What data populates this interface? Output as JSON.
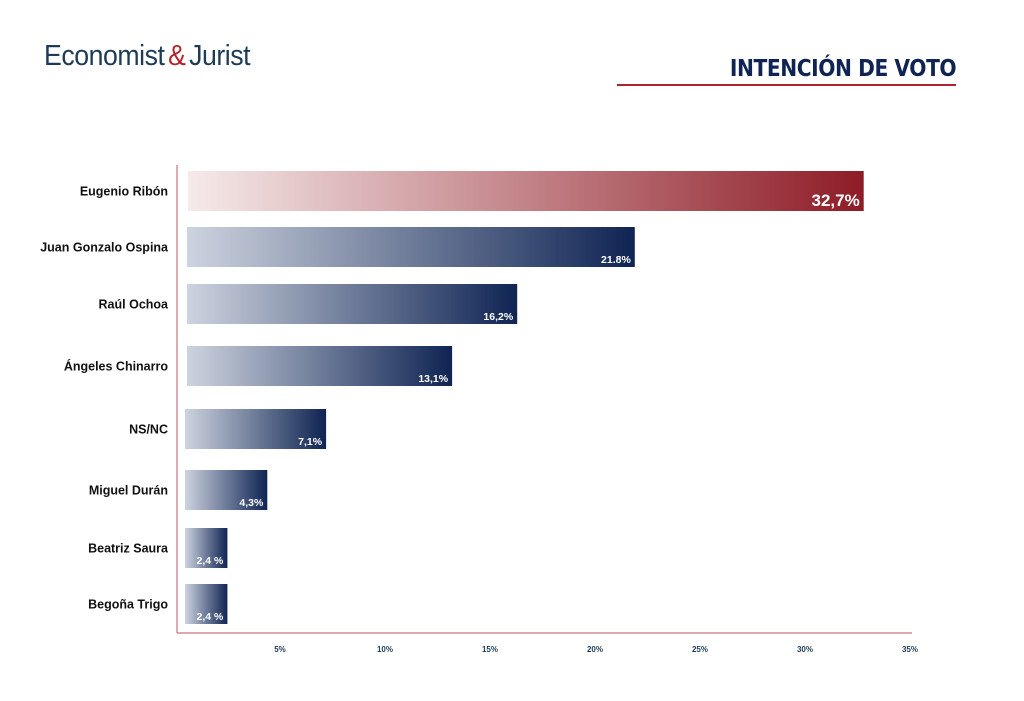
{
  "header": {
    "logo_part1": "Economist",
    "logo_amp": "&",
    "logo_part2": "Jurist",
    "title": "INTENCIÓN DE VOTO"
  },
  "chart_data": {
    "type": "bar",
    "orientation": "horizontal",
    "title": "INTENCIÓN DE VOTO",
    "xlabel": "",
    "ylabel": "",
    "xlim": [
      0,
      35
    ],
    "grid": false,
    "categories": [
      "Eugenio Ribón",
      "Juan Gonzalo Ospina",
      "Raúl Ochoa",
      "Ángeles Chinarro",
      "NS/NC",
      "Miguel Durán",
      "Beatriz Saura",
      "Begoña Trigo"
    ],
    "values": [
      32.7,
      21.8,
      16.2,
      13.1,
      7.1,
      4.3,
      2.4,
      2.4
    ],
    "value_labels": [
      "32,7%",
      "21.8%",
      "16,2%",
      "13,1%",
      "7,1%",
      "4,3%",
      "2,4 %",
      "2,4 %"
    ],
    "ticks": [
      5,
      10,
      15,
      20,
      25,
      30,
      35
    ],
    "tick_labels": [
      "5%",
      "10%",
      "15%",
      "20%",
      "25%",
      "30%",
      "35%"
    ],
    "colors": {
      "highlight_start": "#f6eaea",
      "highlight_end": "#8e1c26",
      "bar_start": "#cdd3df",
      "bar_end": "#0f2453",
      "axis": "#c9767c"
    }
  }
}
